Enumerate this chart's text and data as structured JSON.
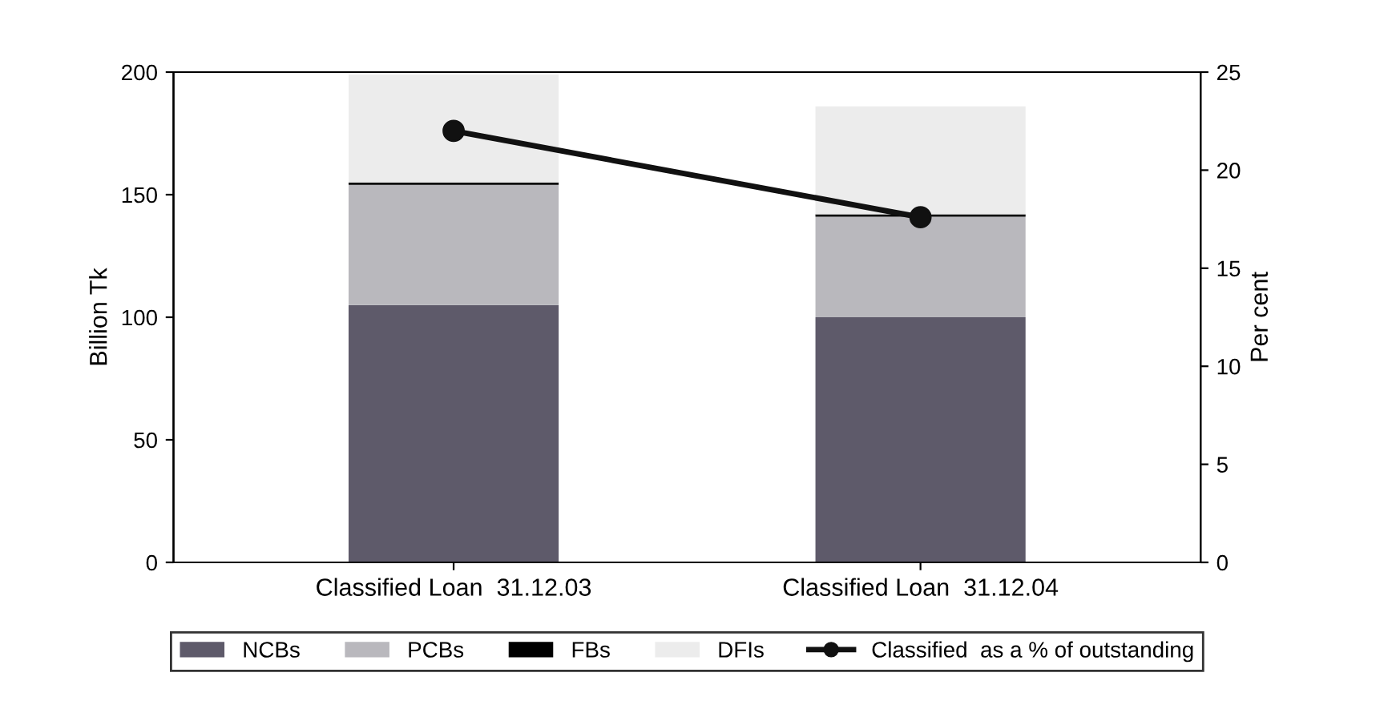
{
  "chart_data": {
    "type": "bar",
    "stacked": true,
    "ylabel": "Billion Tk",
    "y2label": "Per cent",
    "categories": [
      "Classified Loan  31.12.03",
      "Classified Loan  31.12.04"
    ],
    "series": [
      {
        "name": "NCBs",
        "color": "#5e5a6a",
        "values": [
          105,
          100
        ]
      },
      {
        "name": "PCBs",
        "color": "#b9b8bd",
        "values": [
          49,
          41
        ]
      },
      {
        "name": "FBs",
        "color": "#000000",
        "values": [
          1,
          1
        ]
      },
      {
        "name": "DFIs",
        "color": "#ececec",
        "values": [
          44,
          44
        ]
      },
      {
        "name": "Classified  as a % of outstanding",
        "type": "line",
        "axis": "y2",
        "color": "#111111",
        "marker": "circle",
        "values": [
          22.0,
          17.6
        ]
      }
    ],
    "ylim": [
      0,
      200
    ],
    "yticks": [
      0,
      50,
      100,
      150,
      200
    ],
    "y2lim": [
      0,
      25
    ],
    "y2ticks": [
      0,
      5,
      10,
      15,
      20,
      25
    ],
    "grid": false,
    "legend": "bottom"
  }
}
